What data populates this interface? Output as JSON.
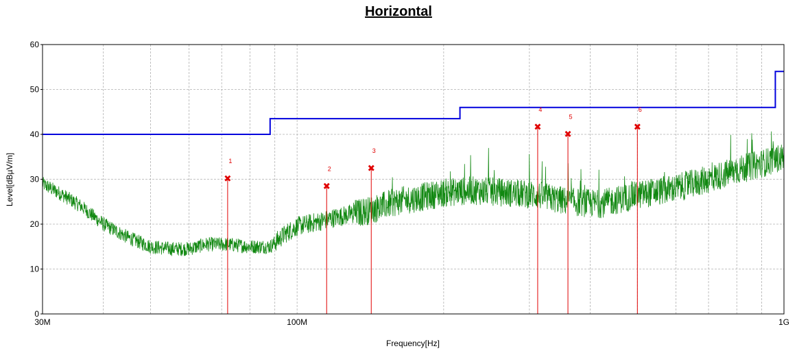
{
  "chart_data": {
    "type": "line",
    "title": "Horizontal",
    "xlabel": "Frequency[Hz]",
    "ylabel": "Level[dBµV/m]",
    "x_scale": "log",
    "xlim": [
      30000000,
      1000000000
    ],
    "ylim": [
      0,
      60
    ],
    "grid": true,
    "x_tick_labels": [
      {
        "value": 30000000,
        "label": "30M"
      },
      {
        "value": 100000000,
        "label": "100M"
      },
      {
        "value": 1000000000,
        "label": "1G"
      }
    ],
    "y_ticks": [
      0,
      10,
      20,
      30,
      40,
      50,
      60
    ],
    "limit_line": {
      "color": "#0000dd",
      "steps": [
        {
          "from": 30000000,
          "to": 88000000,
          "level": 40.0
        },
        {
          "from": 88000000,
          "to": 216000000,
          "level": 43.5
        },
        {
          "from": 216000000,
          "to": 960000000,
          "level": 46.0
        },
        {
          "from": 960000000,
          "to": 1000000000,
          "level": 54.0
        }
      ]
    },
    "series": [
      {
        "color": "#118811",
        "noise_envelope": [
          [
            30000000,
            29
          ],
          [
            33000000,
            26.5
          ],
          [
            36000000,
            24
          ],
          [
            40000000,
            20
          ],
          [
            45000000,
            17
          ],
          [
            50000000,
            15
          ],
          [
            55000000,
            14.5
          ],
          [
            60000000,
            14.5
          ],
          [
            65000000,
            15.5
          ],
          [
            72000000,
            15.5
          ],
          [
            80000000,
            15
          ],
          [
            88000000,
            15
          ],
          [
            95000000,
            18
          ],
          [
            100000000,
            19.5
          ],
          [
            110000000,
            20.5
          ],
          [
            120000000,
            21.5
          ],
          [
            140000000,
            23
          ],
          [
            160000000,
            25
          ],
          [
            180000000,
            26
          ],
          [
            200000000,
            27
          ],
          [
            230000000,
            27.5
          ],
          [
            270000000,
            27
          ],
          [
            310000000,
            26.5
          ],
          [
            360000000,
            25
          ],
          [
            420000000,
            24.5
          ],
          [
            500000000,
            26.5
          ],
          [
            600000000,
            28
          ],
          [
            700000000,
            30
          ],
          [
            800000000,
            32
          ],
          [
            900000000,
            33.5
          ],
          [
            1000000000,
            35
          ]
        ]
      }
    ],
    "markers": [
      {
        "id": "1",
        "frequency": 72000000,
        "level": 30.2
      },
      {
        "id": "2",
        "frequency": 115000000,
        "level": 28.5
      },
      {
        "id": "3",
        "frequency": 142000000,
        "level": 32.5
      },
      {
        "id": "4",
        "frequency": 312000000,
        "level": 41.7
      },
      {
        "id": "5",
        "frequency": 360000000,
        "level": 40.1
      },
      {
        "id": "6",
        "frequency": 500000000,
        "level": 41.7
      }
    ]
  }
}
